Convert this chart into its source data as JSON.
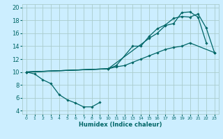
{
  "xlabel": "Humidex (Indice chaleur)",
  "bg_color": "#cceeff",
  "grid_color": "#aacccc",
  "line_color": "#006666",
  "xlim": [
    -0.5,
    23.5
  ],
  "ylim": [
    3.5,
    20.5
  ],
  "xticks": [
    0,
    1,
    2,
    3,
    4,
    5,
    6,
    7,
    8,
    9,
    10,
    11,
    12,
    13,
    14,
    15,
    16,
    17,
    18,
    19,
    20,
    21,
    22,
    23
  ],
  "yticks": [
    4,
    6,
    8,
    10,
    12,
    14,
    16,
    18,
    20
  ],
  "s1_x": [
    0,
    1,
    2,
    3,
    4,
    5,
    6,
    7,
    8,
    9
  ],
  "s1_y": [
    10,
    9.7,
    8.8,
    8.2,
    6.5,
    5.7,
    5.2,
    4.6,
    4.6,
    5.3
  ],
  "s2_x": [
    0,
    10,
    11,
    12,
    13,
    14,
    15,
    16,
    17,
    18,
    19,
    20,
    23
  ],
  "s2_y": [
    10,
    10.5,
    10.8,
    11.0,
    11.5,
    12.0,
    12.5,
    13.0,
    13.5,
    13.8,
    14.0,
    14.5,
    13.0
  ],
  "s3_x": [
    0,
    10,
    11,
    13,
    14,
    15,
    16,
    17,
    18,
    19,
    20,
    21,
    22,
    23
  ],
  "s3_y": [
    10,
    10.5,
    11.0,
    14.0,
    14.0,
    15.5,
    16.7,
    17.3,
    18.3,
    18.6,
    18.5,
    19.0,
    16.8,
    13.0
  ],
  "s4_x": [
    0,
    10,
    15,
    16,
    17,
    18,
    19,
    20,
    21,
    22
  ],
  "s4_y": [
    10,
    10.5,
    15.2,
    16.0,
    17.2,
    17.5,
    19.2,
    19.3,
    18.5,
    14.5
  ]
}
